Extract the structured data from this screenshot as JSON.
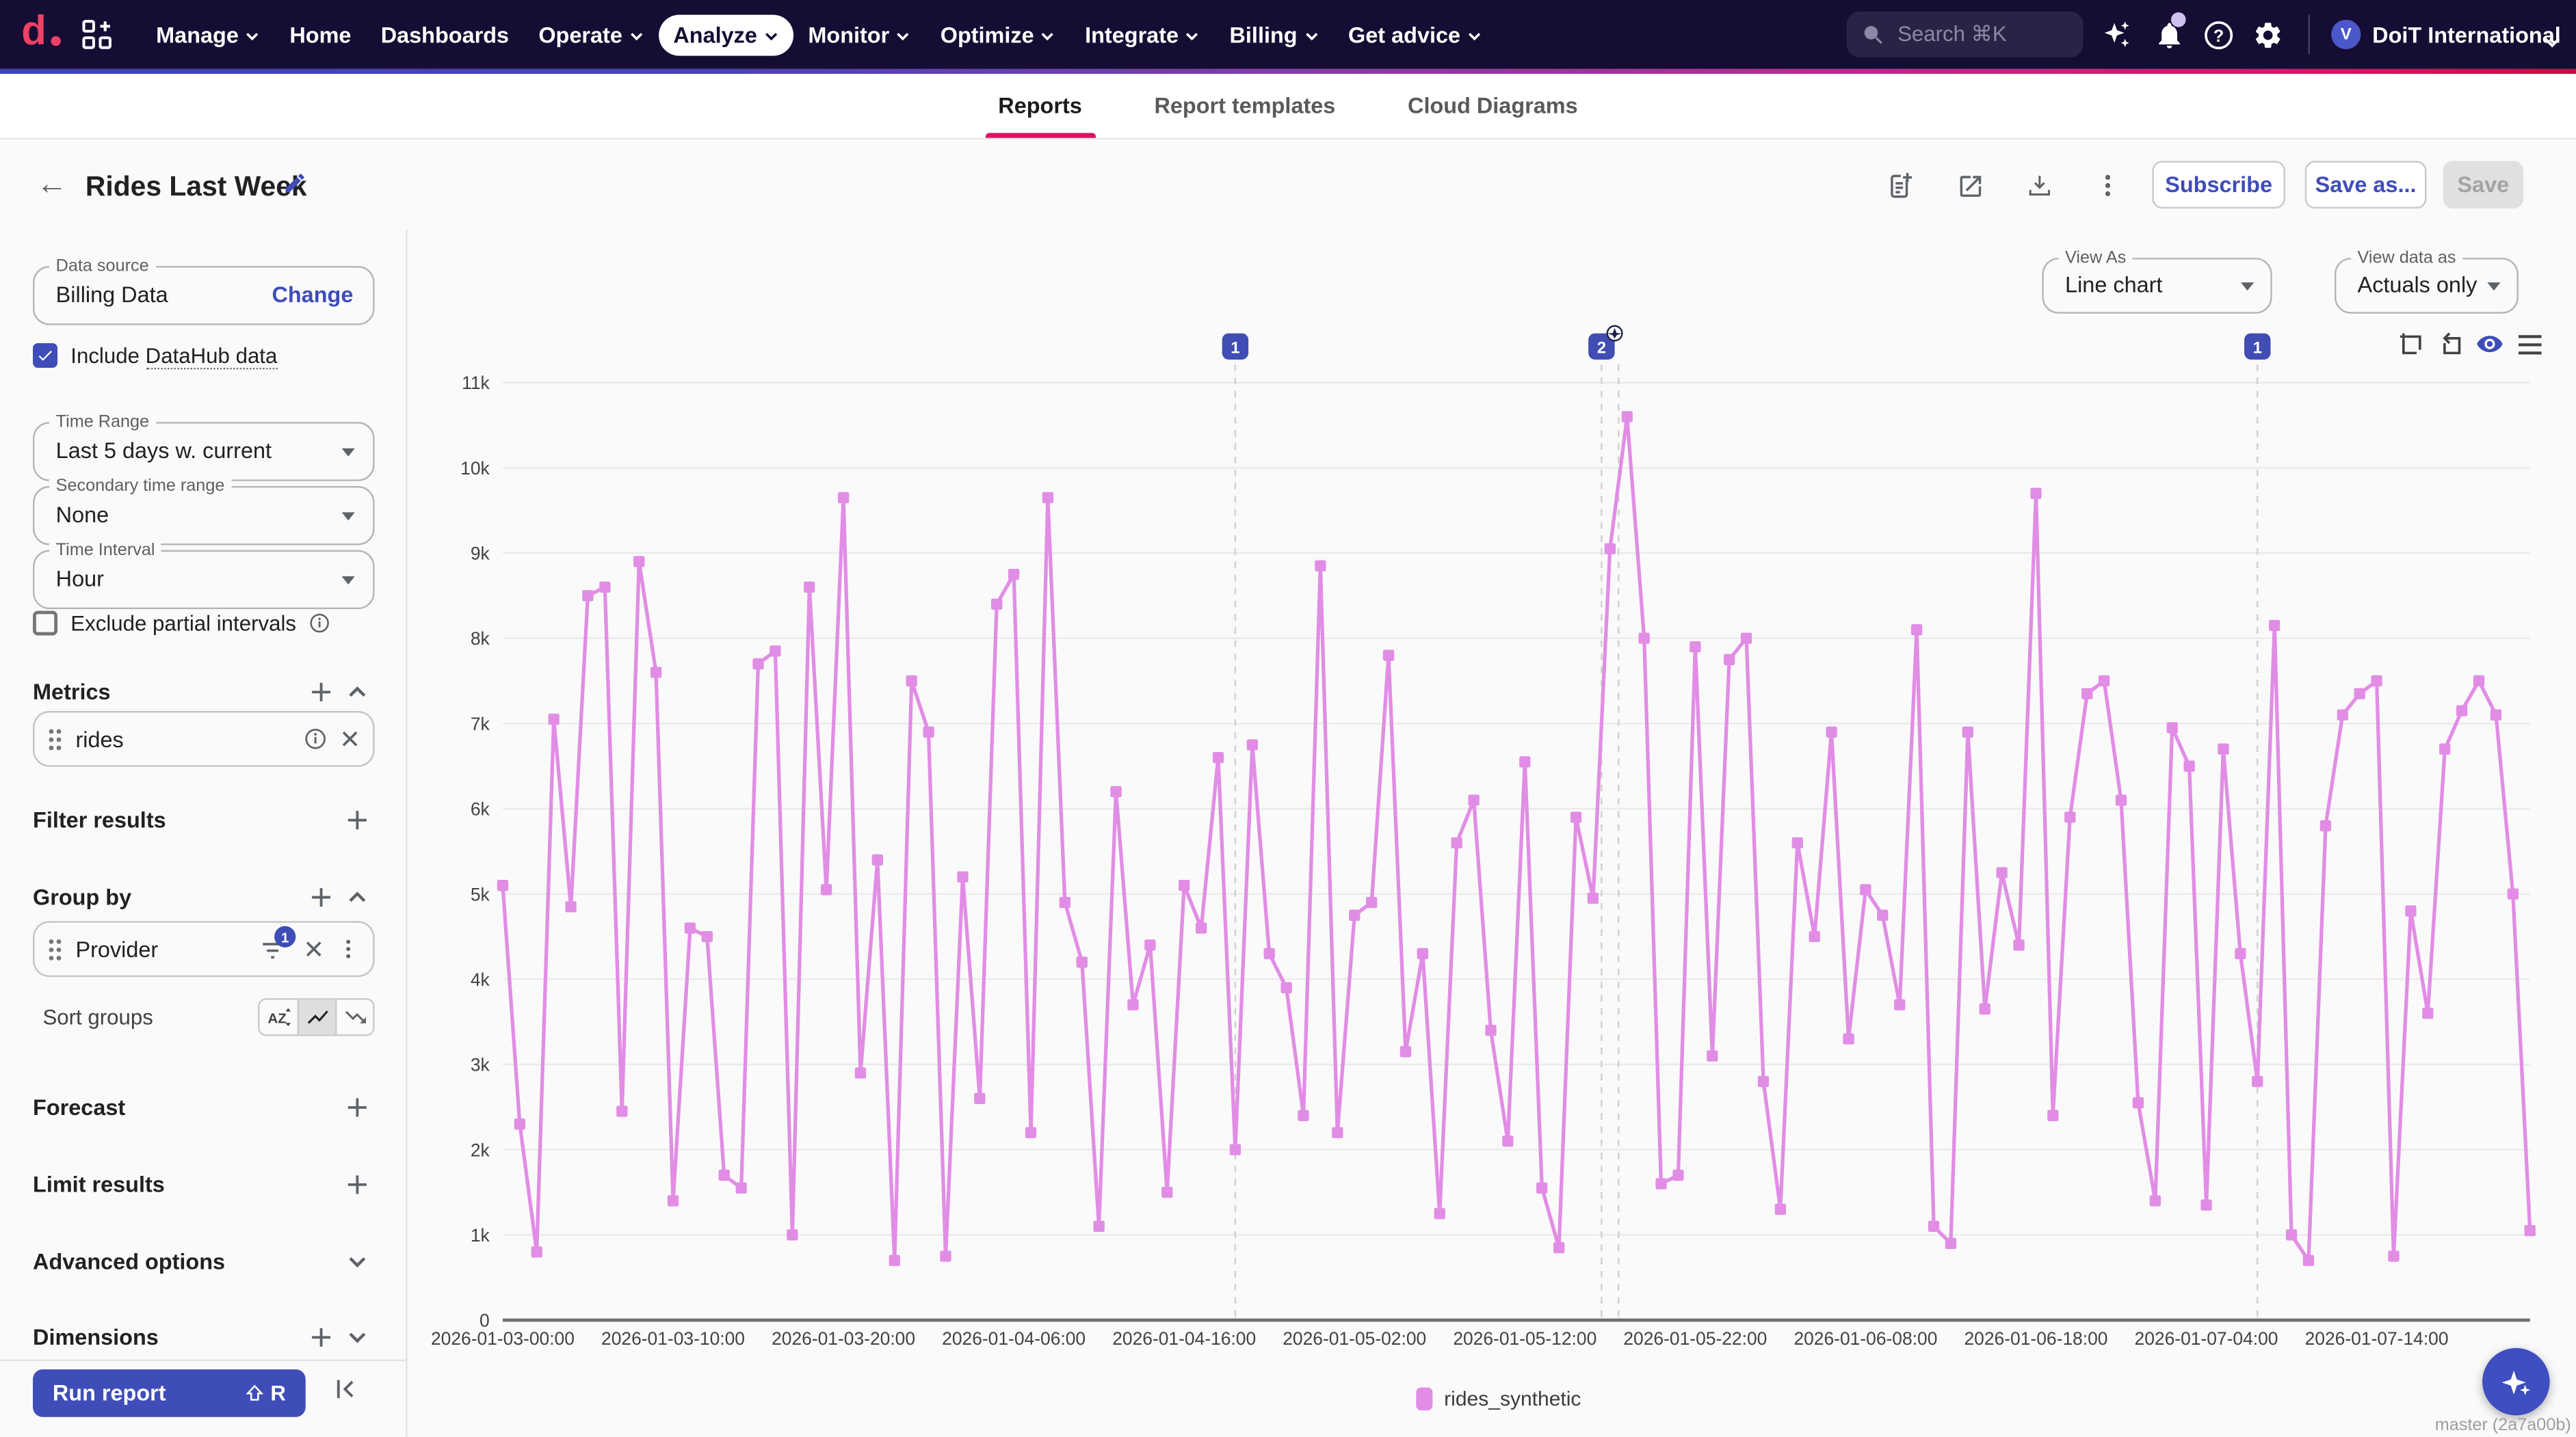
{
  "nav": {
    "logo": "doit-logo",
    "menu": [
      {
        "label": "Manage",
        "chevron": true,
        "active": false
      },
      {
        "label": "Home",
        "chevron": false,
        "active": false
      },
      {
        "label": "Dashboards",
        "chevron": false,
        "active": false
      },
      {
        "label": "Operate",
        "chevron": true,
        "active": false
      },
      {
        "label": "Analyze",
        "chevron": true,
        "active": true
      },
      {
        "label": "Monitor",
        "chevron": true,
        "active": false
      },
      {
        "label": "Optimize",
        "chevron": true,
        "active": false
      },
      {
        "label": "Integrate",
        "chevron": true,
        "active": false
      },
      {
        "label": "Billing",
        "chevron": true,
        "active": false
      },
      {
        "label": "Get advice",
        "chevron": true,
        "active": false
      }
    ],
    "search": {
      "placeholder": "Search ⌘K"
    },
    "account": {
      "initial": "V",
      "name": "DoiT International"
    }
  },
  "tabs": [
    {
      "label": "Reports",
      "active": true
    },
    {
      "label": "Report templates",
      "active": false
    },
    {
      "label": "Cloud Diagrams",
      "active": false
    }
  ],
  "report_header": {
    "title": "Rides Last Week",
    "buttons": {
      "subscribe": "Subscribe",
      "save_as": "Save as...",
      "save": "Save"
    }
  },
  "sidebar": {
    "data_source": {
      "label": "Data source",
      "value": "Billing Data",
      "action": "Change"
    },
    "include_datahub": {
      "prefix": "Include",
      "term": "DataHub data",
      "checked": true
    },
    "time_range": {
      "label": "Time Range",
      "value": "Last 5 days w. current"
    },
    "secondary_time_range": {
      "label": "Secondary time range",
      "value": "None"
    },
    "time_interval": {
      "label": "Time Interval",
      "value": "Hour"
    },
    "exclude_partial": {
      "label": "Exclude partial intervals",
      "checked": false
    },
    "metrics": {
      "title": "Metrics",
      "chip": "rides"
    },
    "filter_results": {
      "title": "Filter results"
    },
    "group_by": {
      "title": "Group by",
      "chip": "Provider",
      "filter_count": "1"
    },
    "sort_groups": {
      "label": "Sort groups",
      "selected": "trending-up"
    },
    "forecast": {
      "title": "Forecast"
    },
    "limit_results": {
      "title": "Limit results"
    },
    "advanced_options": {
      "title": "Advanced options"
    },
    "dimensions": {
      "title": "Dimensions"
    },
    "run_report": {
      "label": "Run report",
      "shortcut_key": "R"
    }
  },
  "chart_panel": {
    "view_as": {
      "label": "View As",
      "value": "Line chart"
    },
    "view_data_as": {
      "label": "View data as",
      "value": "Actuals only"
    },
    "annotations": [
      {
        "label": "1",
        "hour": 43,
        "sparkle": false
      },
      {
        "label": "2",
        "hour": 64.5,
        "extra_line_hour": 65.5,
        "sparkle": true
      },
      {
        "label": "1",
        "hour": 103,
        "sparkle": false
      }
    ],
    "version_text": "master (2a7a00b)"
  },
  "chart_data": {
    "type": "line",
    "title": "",
    "xlabel": "",
    "ylabel": "",
    "ylim": [
      0,
      11000
    ],
    "y_tick_step": 1000,
    "y_tick_labels": [
      "0",
      "1k",
      "2k",
      "3k",
      "4k",
      "5k",
      "6k",
      "7k",
      "8k",
      "9k",
      "10k",
      "11k"
    ],
    "x_hours_total": 120,
    "x_tick_every": 10,
    "x_tick_labels": [
      "2026-01-03-00:00",
      "2026-01-03-10:00",
      "2026-01-03-20:00",
      "2026-01-04-06:00",
      "2026-01-04-16:00",
      "2026-01-05-02:00",
      "2026-01-05-12:00",
      "2026-01-05-22:00",
      "2026-01-06-08:00",
      "2026-01-06-18:00",
      "2026-01-07-04:00",
      "2026-01-07-14:00"
    ],
    "grid": true,
    "legend_position": "bottom",
    "series": [
      {
        "name": "rides_synthetic",
        "color": "#e18de5",
        "marker": "square",
        "values": [
          5100,
          2300,
          800,
          7050,
          4850,
          8500,
          8600,
          2450,
          8900,
          7600,
          1400,
          4600,
          4500,
          1700,
          1550,
          7700,
          7850,
          1000,
          8600,
          5050,
          9650,
          2900,
          5400,
          700,
          7500,
          6900,
          750,
          5200,
          2600,
          8400,
          8750,
          2200,
          9650,
          4900,
          4200,
          1100,
          6200,
          3700,
          4400,
          1500,
          5100,
          4600,
          6600,
          2000,
          6750,
          4300,
          3900,
          2400,
          8850,
          2200,
          4750,
          4900,
          7800,
          3150,
          4300,
          1250,
          5600,
          6100,
          3400,
          2100,
          6550,
          1550,
          850,
          5900,
          4950,
          9050,
          10600,
          8000,
          1600,
          1700,
          7900,
          3100,
          7750,
          8000,
          2800,
          1300,
          5600,
          4500,
          6900,
          3300,
          5050,
          4750,
          3700,
          8100,
          1100,
          900,
          6900,
          3650,
          5250,
          4400,
          9700,
          2400,
          5900,
          7350,
          7500,
          6100,
          2550,
          1400,
          6950,
          6500,
          1350,
          6700,
          4300,
          2800,
          8150,
          1000,
          700,
          5800,
          7100,
          7350,
          7500,
          750,
          4800,
          3600,
          6700,
          7150,
          7500,
          7100,
          5000,
          1050
        ]
      }
    ]
  },
  "colors": {
    "accent_indigo": "#3e4db8",
    "brand_pink": "#d6145f",
    "nav_bg": "#150d33",
    "line_color": "#e18de5"
  }
}
